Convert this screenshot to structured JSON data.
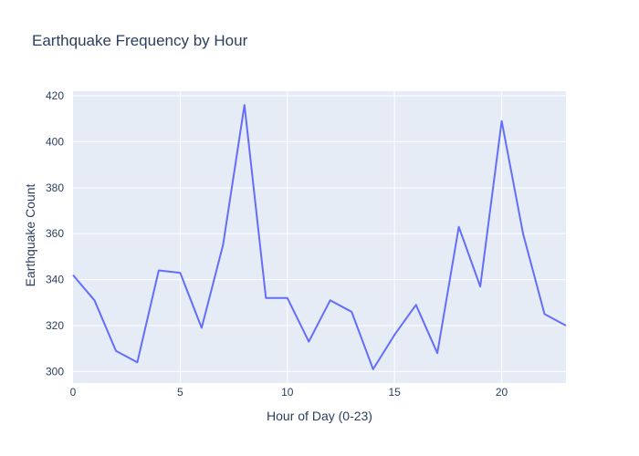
{
  "chart_data": {
    "type": "line",
    "title": "Earthquake Frequency by Hour",
    "xlabel": "Hour of Day (0-23)",
    "ylabel": "Earthquake Count",
    "x": [
      0,
      1,
      2,
      3,
      4,
      5,
      6,
      7,
      8,
      9,
      10,
      11,
      12,
      13,
      14,
      15,
      16,
      17,
      18,
      19,
      20,
      21,
      22,
      23
    ],
    "values": [
      342,
      331,
      309,
      304,
      344,
      343,
      319,
      355,
      416,
      332,
      332,
      313,
      331,
      326,
      301,
      316,
      329,
      308,
      363,
      337,
      409,
      360,
      325,
      320
    ],
    "xlim": [
      0,
      23
    ],
    "ylim": [
      295,
      422
    ],
    "xticks": [
      0,
      5,
      10,
      15,
      20
    ],
    "yticks": [
      300,
      320,
      340,
      360,
      380,
      400,
      420
    ],
    "grid": true,
    "line_color": "#636efa",
    "plot_bg": "#e5ecf6",
    "grid_color": "#ffffff"
  }
}
